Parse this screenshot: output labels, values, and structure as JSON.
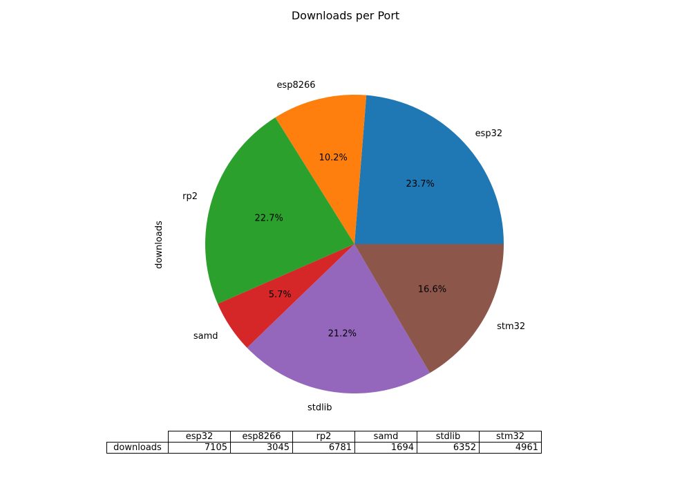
{
  "chart_data": {
    "type": "pie",
    "title": "Downloads per Port",
    "ylabel": "downloads",
    "categories": [
      "esp32",
      "esp8266",
      "rp2",
      "samd",
      "stdlib",
      "stm32"
    ],
    "values": [
      7105,
      3045,
      6781,
      1694,
      6352,
      4961
    ],
    "percent_labels": [
      "23.7%",
      "10.2%",
      "22.7%",
      "5.7%",
      "21.2%",
      "16.6%"
    ],
    "colors": [
      "#1f77b4",
      "#ff7f0e",
      "#2ca02c",
      "#d62728",
      "#9467bd",
      "#8c564b"
    ],
    "table": {
      "row_label": "downloads",
      "columns": [
        "esp32",
        "esp8266",
        "rp2",
        "samd",
        "stdlib",
        "stm32"
      ],
      "values": [
        "7105",
        "3045",
        "6781",
        "1694",
        "6352",
        "4961"
      ]
    }
  }
}
